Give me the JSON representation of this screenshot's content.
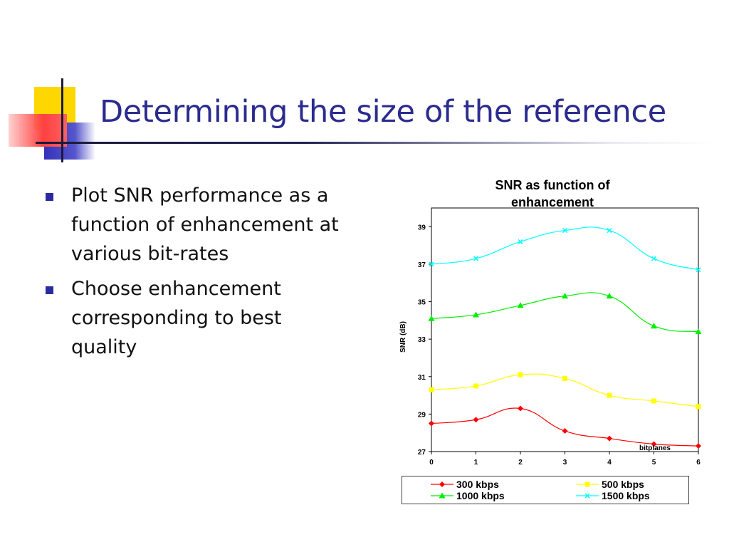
{
  "slide": {
    "title": "Determining the size of the reference",
    "bullets": [
      "Plot SNR performance as a function of enhancement at various bit-rates",
      "Choose enhancement corresponding to best quality"
    ],
    "accent_colors": {
      "title": "#2b2b8f",
      "bullet": "#2b2b9f",
      "yellow": "#ffd700",
      "red": "#ff4040",
      "blue": "#3333bb"
    }
  },
  "chart_data": {
    "type": "line",
    "title": "SNR as function of enhancement",
    "xlabel": "bitplanes",
    "ylabel": "SNR (dB)",
    "x": [
      0,
      1,
      2,
      3,
      4,
      5,
      6
    ],
    "xlim": [
      0,
      6
    ],
    "ylim": [
      27,
      40
    ],
    "yticks": [
      27,
      29,
      31,
      33,
      35,
      37,
      39
    ],
    "grid": true,
    "legend_position": "bottom",
    "series": [
      {
        "name": "300 kbps",
        "color": "#ff0000",
        "marker": "diamond",
        "values": [
          28.5,
          28.7,
          29.3,
          28.1,
          27.7,
          27.4,
          27.3
        ]
      },
      {
        "name": "500 kbps",
        "color": "#ffff00",
        "marker": "square",
        "values": [
          30.3,
          30.5,
          31.1,
          30.9,
          30.0,
          29.7,
          29.4
        ]
      },
      {
        "name": "1000 kbps",
        "color": "#00ee00",
        "marker": "triangle",
        "values": [
          34.1,
          34.3,
          34.8,
          35.3,
          35.3,
          33.7,
          33.4
        ]
      },
      {
        "name": "1500 kbps",
        "color": "#00ffff",
        "marker": "x",
        "values": [
          37.0,
          37.3,
          38.2,
          38.8,
          38.8,
          37.3,
          36.7
        ]
      }
    ]
  }
}
